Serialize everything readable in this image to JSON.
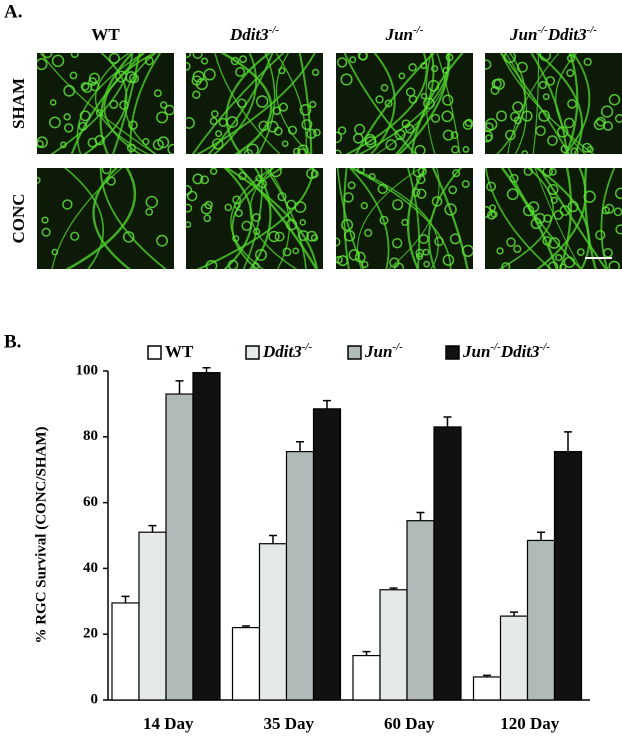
{
  "panel_a": {
    "label": "A.",
    "columns": [
      "WT",
      "Ddit3-/-",
      "Jun-/-",
      "Jun-/-Ddit3-/-"
    ],
    "rows": [
      "SHAM",
      "CONC"
    ]
  },
  "chart_data": {
    "type": "bar",
    "panel_label": "B.",
    "y_label": "% RGC Survival (CONC/SHAM)",
    "categories": [
      "14 Day",
      "35 Day",
      "60 Day",
      "120 Day"
    ],
    "series": [
      {
        "name": "WT",
        "color": "#ffffff",
        "values": [
          29.5,
          22,
          13.5,
          7
        ],
        "errors": [
          2,
          0.5,
          1.2,
          0.5
        ]
      },
      {
        "name": "Ddit3-/-",
        "color": "#e6eae6",
        "values": [
          51,
          47.5,
          33.5,
          25.5
        ],
        "errors": [
          2,
          2.5,
          0.5,
          1.2
        ]
      },
      {
        "name": "Jun-/-",
        "color": "#b2bab9",
        "values": [
          93,
          75.5,
          54.5,
          48.5
        ],
        "errors": [
          4,
          3,
          2.5,
          2.5
        ]
      },
      {
        "name": "Jun-/-Ddit3-/-",
        "color": "#111111",
        "values": [
          99.5,
          88.5,
          83,
          75.5
        ],
        "errors": [
          1.5,
          2.5,
          3,
          6
        ]
      }
    ],
    "ylim": [
      0,
      100
    ],
    "yticks": [
      0,
      20,
      40,
      60,
      80,
      100
    ],
    "grid": false
  }
}
